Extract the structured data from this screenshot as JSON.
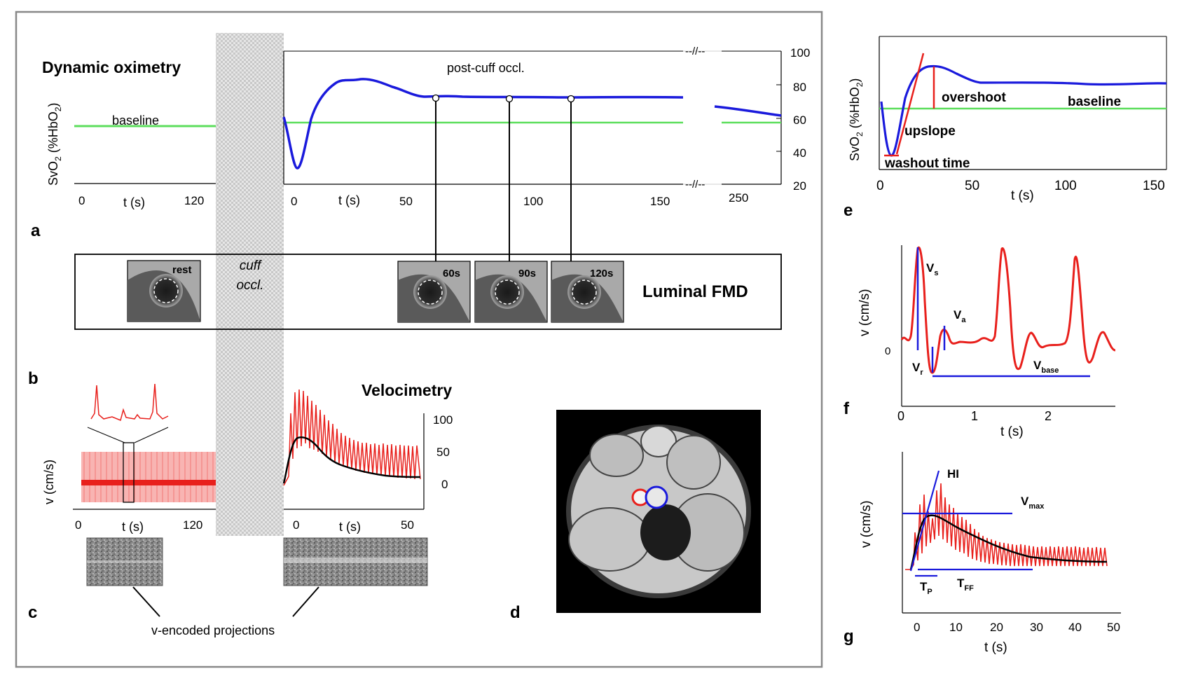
{
  "panel_a": {
    "title": "Dynamic oximetry",
    "ylabel_main": "SvO",
    "ylabel_sub": "2",
    "ylabel_rest": " (%HbO",
    "ylabel_sub2": "2",
    "ylabel_end": ")",
    "baseline_label": "baseline",
    "post_cuff_label": "post-cuff occl.",
    "left_ticks": [
      "0",
      "t (s)",
      "120"
    ],
    "right_ticks": [
      "0",
      "t (s)",
      "50",
      "100",
      "150",
      "250"
    ],
    "y_ticks": [
      "100",
      "80",
      "60",
      "40",
      "20"
    ],
    "break_label": "--//--",
    "letter": "a"
  },
  "panel_b": {
    "rest_label": "rest",
    "snapshots": [
      "60s",
      "90s",
      "120s"
    ],
    "title": "Luminal FMD",
    "letter": "b"
  },
  "cuff": {
    "line1": "cuff",
    "line2": "occl."
  },
  "panel_c": {
    "title": "Velocimetry",
    "ylabel": "v (cm/s)",
    "left_ticks": [
      "0",
      "t (s)",
      "120"
    ],
    "right_ticks": [
      "0",
      "t (s)",
      "50"
    ],
    "y_ticks": [
      "100",
      "50",
      "0"
    ],
    "projections_label": "v-encoded projections",
    "letter": "c"
  },
  "panel_d": {
    "letter": "d"
  },
  "panel_e": {
    "ylabel": "SvO",
    "labels": {
      "overshoot": "overshoot",
      "baseline": "baseline",
      "upslope": "upslope",
      "washout": "washout time"
    },
    "x_ticks": [
      "0",
      "50",
      "100",
      "150"
    ],
    "xlabel": "t (s)",
    "letter": "e"
  },
  "panel_f": {
    "ylabel": "v (cm/s)",
    "zero": "0",
    "labels": {
      "vs": "V",
      "vs_sub": "s",
      "va": "V",
      "va_sub": "a",
      "vr": "V",
      "vr_sub": "r",
      "vbase": "V",
      "vbase_sub": "base"
    },
    "x_ticks": [
      "0",
      "1",
      "2"
    ],
    "xlabel": "t (s)",
    "letter": "f"
  },
  "panel_g": {
    "ylabel": "v (cm/s)",
    "labels": {
      "hi": "HI",
      "vmax": "V",
      "vmax_sub": "max",
      "tp": "T",
      "tp_sub": "P",
      "tff": "T",
      "tff_sub": "FF"
    },
    "x_ticks": [
      "0",
      "10",
      "20",
      "30",
      "40",
      "50"
    ],
    "xlabel": "t (s)",
    "letter": "g"
  },
  "colors": {
    "blue": "#1a1adc",
    "red": "#e8201c",
    "green": "#5cde5c",
    "black": "#000000"
  }
}
